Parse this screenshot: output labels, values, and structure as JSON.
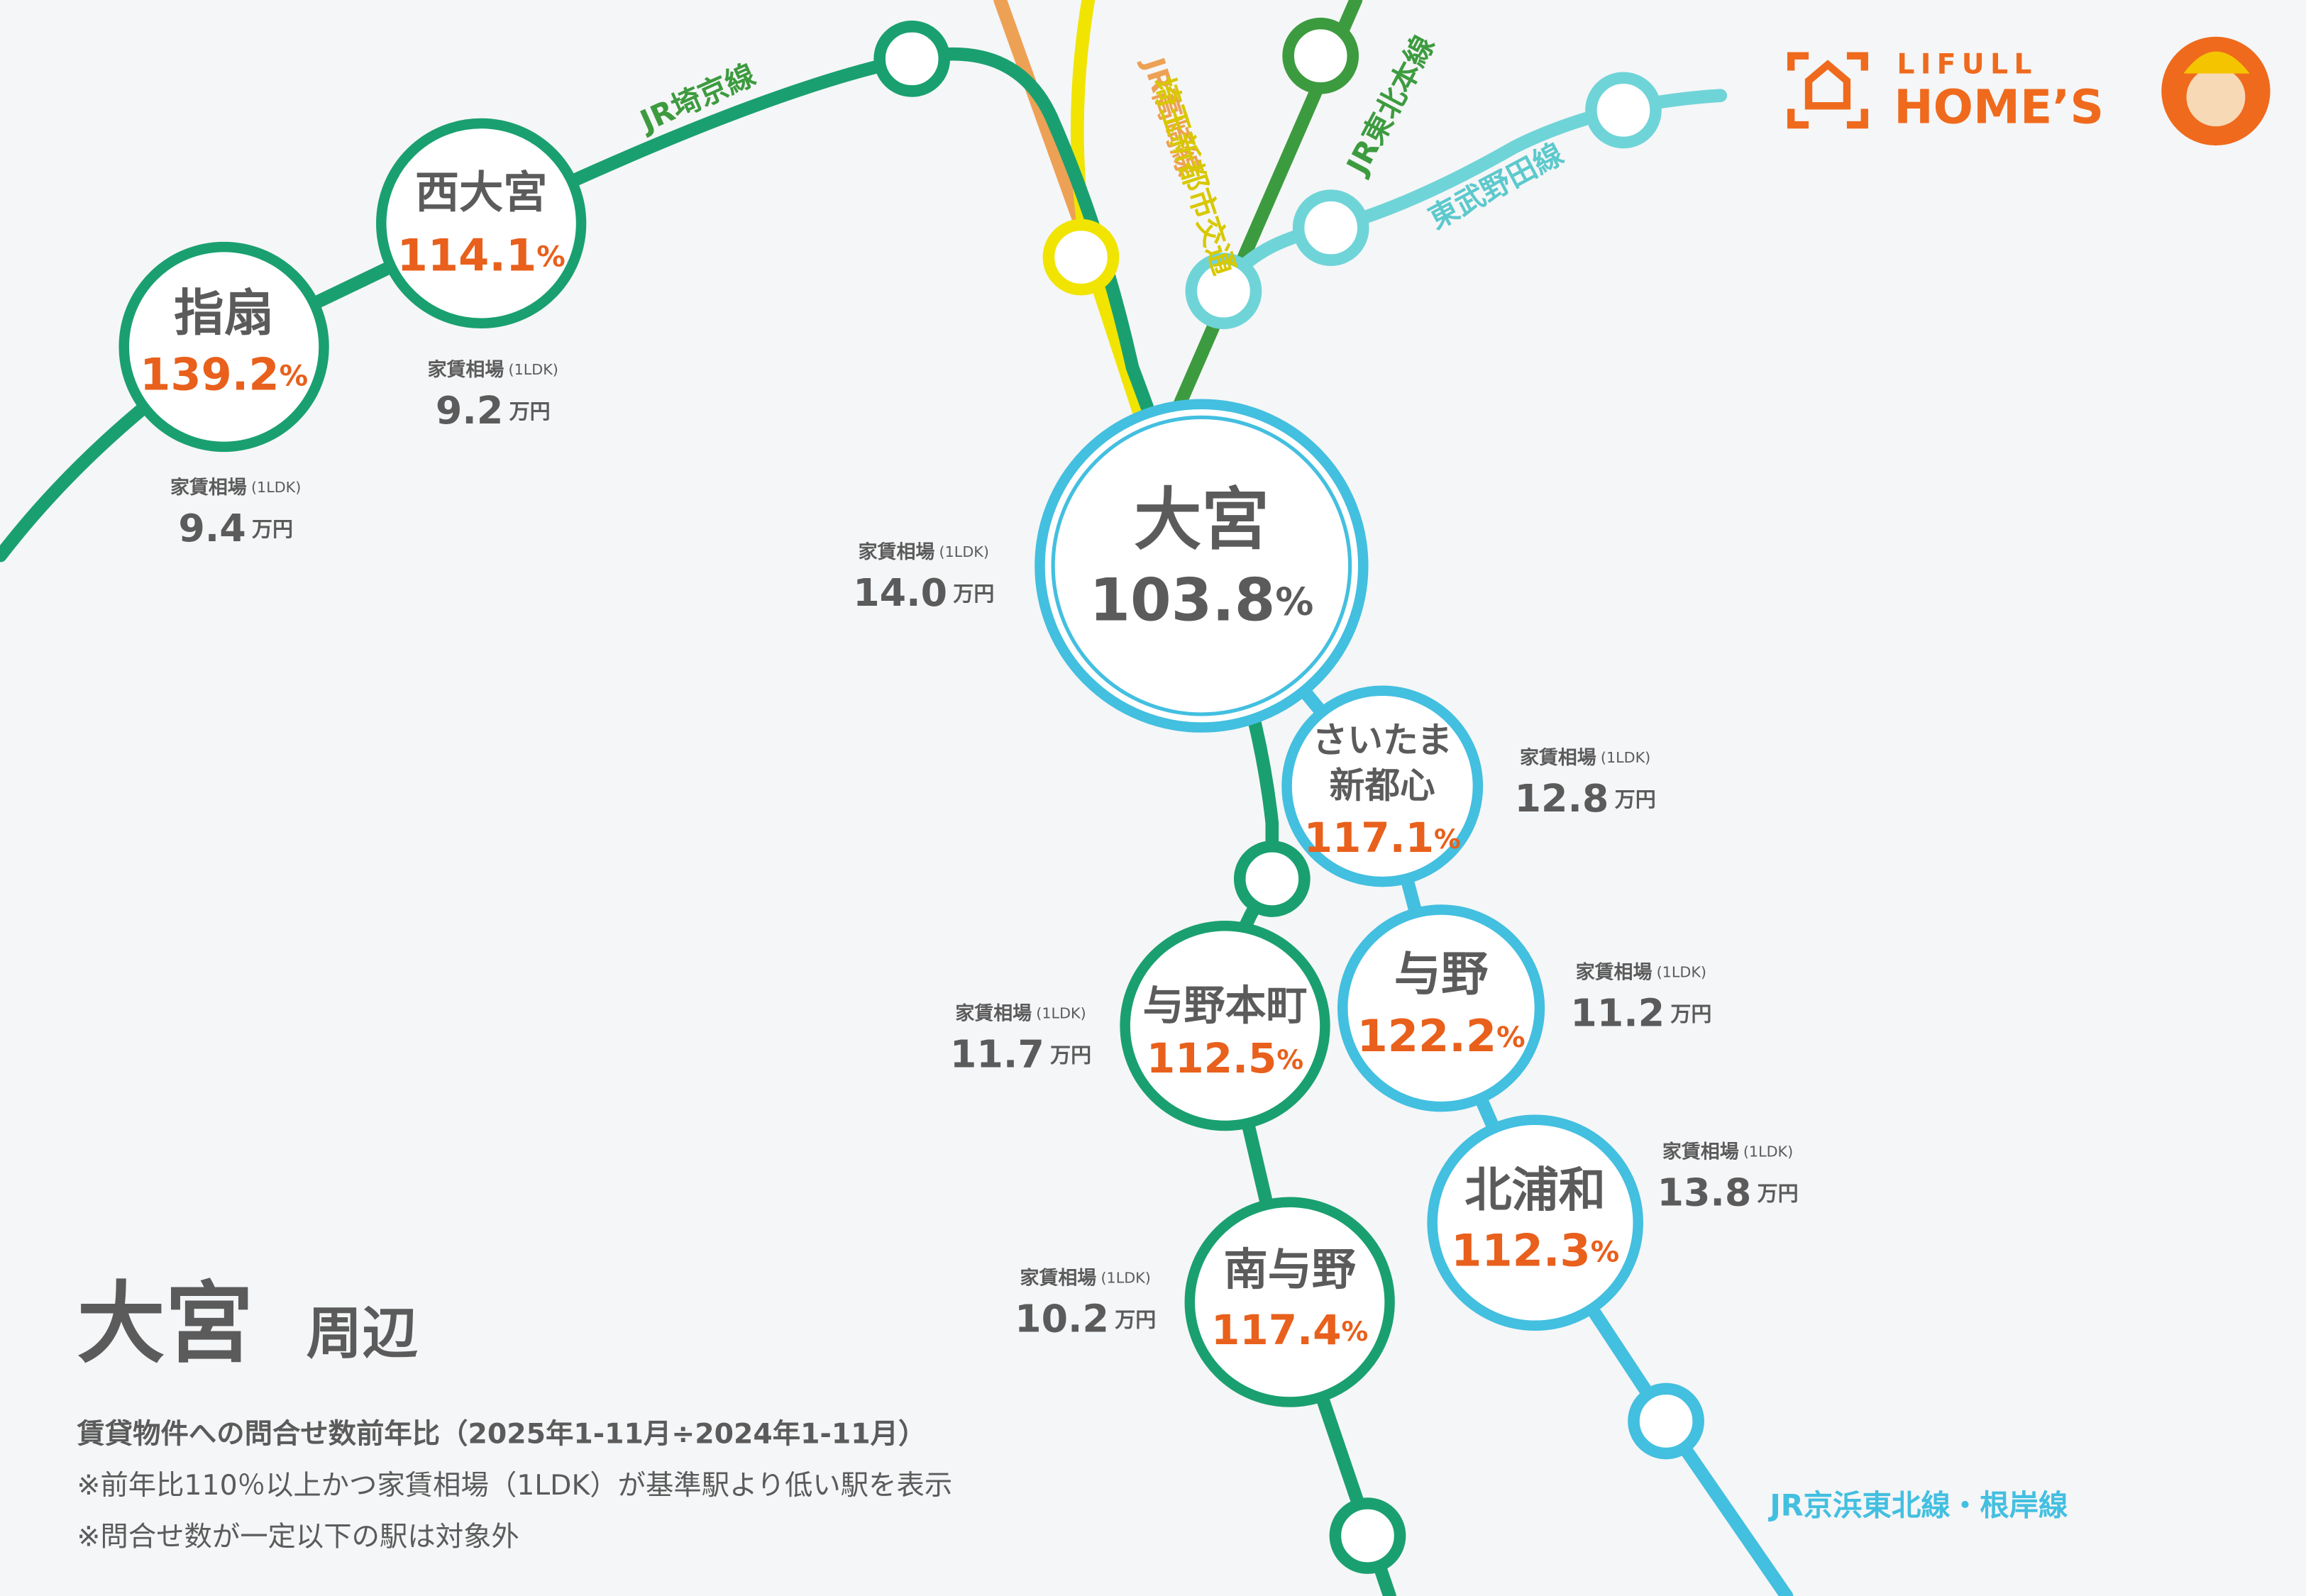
{
  "header": {
    "logo_top": "LIFULL",
    "logo_bottom": "HOME’S"
  },
  "title": {
    "main": "大宮",
    "sub": "周辺"
  },
  "notes": [
    "賃貸物件への問合せ数前年比（2025年1-11月÷2024年1-11月）",
    "※前年比110％以上かつ家賃相場（1LDK）が基準駅より低い駅を表示",
    "※問合せ数が一定以下の駅は対象外"
  ],
  "lines": [
    "JR埼京線",
    "JR高崎線",
    "埼玉新都市交通",
    "JR東北本線",
    "東武野田線",
    "JR京浜東北線・根岸線"
  ],
  "stations": [
    {
      "name": [
        "指扇"
      ],
      "rate": "139.2",
      "rate_unit": "%",
      "rent_label": "家賃相場",
      "rent_note": "(1LDK)",
      "rent": "9.4",
      "rent_unit": "万円"
    },
    {
      "name": [
        "西大宮"
      ],
      "rate": "114.1",
      "rate_unit": "%",
      "rent_label": "家賃相場",
      "rent_note": "(1LDK)",
      "rent": "9.2",
      "rent_unit": "万円"
    },
    {
      "name": [
        "大宮"
      ],
      "rate": "103.8",
      "rate_unit": "%",
      "rent_label": "家賃相場",
      "rent_note": "(1LDK)",
      "rent": "14.0",
      "rent_unit": "万円"
    },
    {
      "name": [
        "さいたま",
        "新都心"
      ],
      "rate": "117.1",
      "rate_unit": "%",
      "rent_label": "家賃相場",
      "rent_note": "(1LDK)",
      "rent": "12.8",
      "rent_unit": "万円"
    },
    {
      "name": [
        "与野"
      ],
      "rate": "122.2",
      "rate_unit": "%",
      "rent_label": "家賃相場",
      "rent_note": "(1LDK)",
      "rent": "11.2",
      "rent_unit": "万円"
    },
    {
      "name": [
        "与野本町"
      ],
      "rate": "112.5",
      "rate_unit": "%",
      "rent_label": "家賃相場",
      "rent_note": "(1LDK)",
      "rent": "11.7",
      "rent_unit": "万円"
    },
    {
      "name": [
        "北浦和"
      ],
      "rate": "112.3",
      "rate_unit": "%",
      "rent_label": "家賃相場",
      "rent_note": "(1LDK)",
      "rent": "13.8",
      "rent_unit": "万円"
    },
    {
      "name": [
        "南与野"
      ],
      "rate": "117.4",
      "rate_unit": "%",
      "rent_label": "家賃相場",
      "rent_note": "(1LDK)",
      "rent": "10.2",
      "rent_unit": "万円"
    }
  ]
}
